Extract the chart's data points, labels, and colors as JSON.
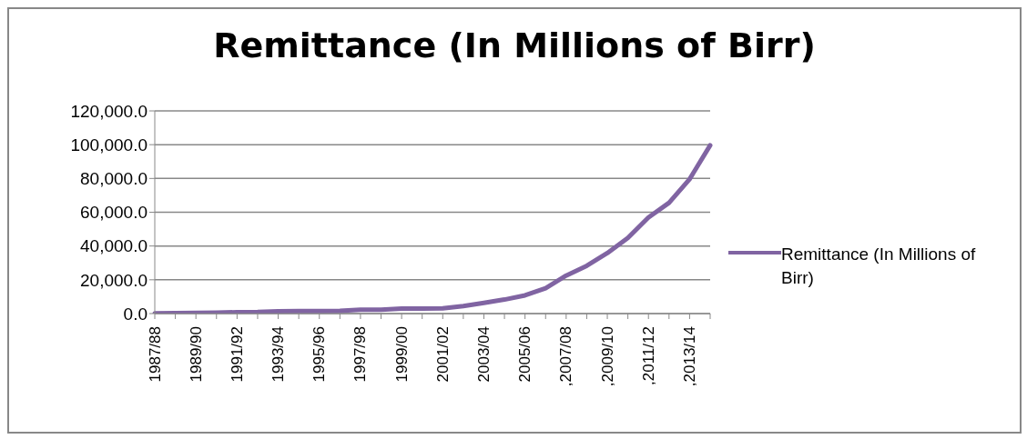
{
  "chart_data": {
    "type": "line",
    "title": "Remittance (In Millions of Birr)",
    "categories": [
      "1987/88",
      null,
      "1989/90",
      null,
      "1991/92",
      null,
      "1993/94",
      null,
      "1995/96",
      null,
      "1997/98",
      null,
      "1999/00",
      null,
      "2001/02",
      null,
      "2003/04",
      null,
      "2005/06",
      null,
      ",2007/08",
      null,
      ",2009/10",
      null,
      ",2011/12",
      null,
      ",2013/14",
      null
    ],
    "series": [
      {
        "name": "Remittance (In Millions of Birr)",
        "color": "#8064a2",
        "values": [
          200,
          300,
          400,
          500,
          800,
          900,
          1400,
          1500,
          1500,
          1600,
          2300,
          2300,
          2900,
          2900,
          3100,
          4400,
          6300,
          8300,
          10800,
          15000,
          22500,
          28300,
          35800,
          44800,
          56900,
          65600,
          79600,
          99600
        ]
      }
    ],
    "ylim": [
      0,
      120000
    ],
    "yticks": [
      {
        "value": 0,
        "label": "0.0"
      },
      {
        "value": 20000,
        "label": "20,000.0"
      },
      {
        "value": 40000,
        "label": "40,000.0"
      },
      {
        "value": 60000,
        "label": "60,000.0"
      },
      {
        "value": 80000,
        "label": "80,000.0"
      },
      {
        "value": 100000,
        "label": "100,000.0"
      },
      {
        "value": 120000,
        "label": "120,000.0"
      }
    ],
    "grid": "y",
    "legend": "right",
    "marker": "none",
    "line_style": "solid"
  }
}
